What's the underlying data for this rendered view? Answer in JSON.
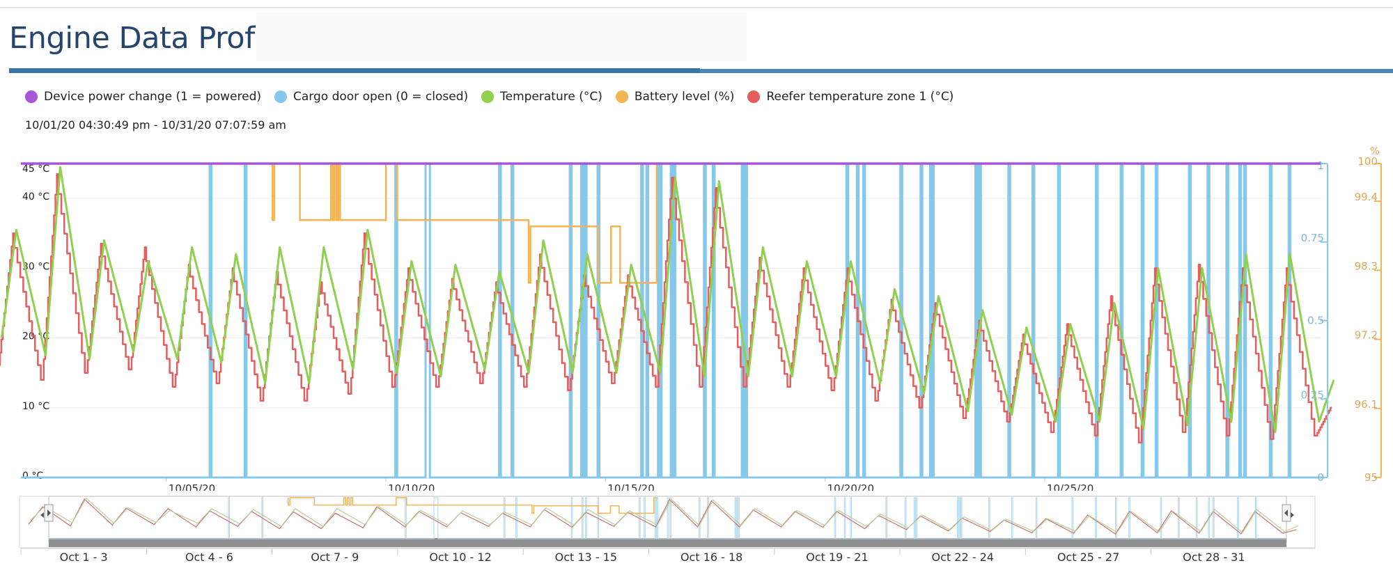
{
  "page": {
    "title": "Engine Data Profile"
  },
  "legend": [
    {
      "label": "Device power change (1 = powered)",
      "color": "#a855d6"
    },
    {
      "label": "Cargo door open (0 = closed)",
      "color": "#86c8ea"
    },
    {
      "label": "Temperature (°C)",
      "color": "#8fd14f"
    },
    {
      "label": "Battery level (%)",
      "color": "#f3b454"
    },
    {
      "label": "Reefer temperature zone 1 (°C)",
      "color": "#e75c5c"
    }
  ],
  "date_range": "10/01/20 04:30:49 pm - 10/31/20 07:07:59 am",
  "chart_data": {
    "type": "line",
    "x_range": [
      "2020-10-01T16:30:49",
      "2020-10-31T07:07:59"
    ],
    "x_ticks": [
      {
        "date": "2020-10-05",
        "label": "10/05/20"
      },
      {
        "date": "2020-10-10",
        "label": "10/10/20"
      },
      {
        "date": "2020-10-15",
        "label": "10/15/20"
      },
      {
        "date": "2020-10-20",
        "label": "10/20/20"
      },
      {
        "date": "2020-10-25",
        "label": "10/25/20"
      }
    ],
    "axes": {
      "temperature": {
        "range": [
          0,
          45
        ],
        "ticks": [
          "0 °C",
          "10 °C",
          "20 °C",
          "30 °C",
          "40 °C",
          "45 °C"
        ],
        "tick_values": [
          0,
          10,
          20,
          30,
          40,
          45
        ]
      },
      "binary": {
        "range": [
          0,
          1
        ],
        "ticks": [
          "0",
          "0.25",
          "0.5",
          "0.75",
          "1"
        ],
        "tick_values": [
          0,
          0.25,
          0.5,
          0.75,
          1
        ]
      },
      "battery": {
        "range": [
          95,
          100
        ],
        "unit": "%",
        "ticks": [
          "95",
          "96.1",
          "97.2",
          "98.3",
          "99.4",
          "100"
        ],
        "tick_values": [
          95,
          96.1,
          97.2,
          98.3,
          99.4,
          100
        ]
      }
    },
    "series": [
      {
        "name": "Device power change (1 = powered)",
        "axis": "binary",
        "points": [
          [
            "2020-10-01T16:30",
            1
          ],
          [
            "2020-10-31T07:07",
            1
          ]
        ]
      },
      {
        "name": "Temperature (°C)",
        "axis": "temperature",
        "daily_peak_time": "14:00",
        "daily_low_time": "06:00",
        "daily": [
          {
            "date": "2020-10-01",
            "peak": 35.5,
            "low": 20
          },
          {
            "date": "2020-10-02",
            "peak": 44.5,
            "low": 17.5
          },
          {
            "date": "2020-10-03",
            "peak": 34,
            "low": 17
          },
          {
            "date": "2020-10-04",
            "peak": 31,
            "low": 18
          },
          {
            "date": "2020-10-05",
            "peak": 33,
            "low": 17
          },
          {
            "date": "2020-10-06",
            "peak": 32,
            "low": 16.5
          },
          {
            "date": "2020-10-07",
            "peak": 33,
            "low": 13.5
          },
          {
            "date": "2020-10-08",
            "peak": 33,
            "low": 13.5
          },
          {
            "date": "2020-10-09",
            "peak": 35.5,
            "low": 15.5
          },
          {
            "date": "2020-10-10",
            "peak": 31,
            "low": 15
          },
          {
            "date": "2020-10-11",
            "peak": 30.5,
            "low": 14.5
          },
          {
            "date": "2020-10-12",
            "peak": 29.5,
            "low": 15.5
          },
          {
            "date": "2020-10-13",
            "peak": 34,
            "low": 15
          },
          {
            "date": "2020-10-14",
            "peak": 32,
            "low": 15
          },
          {
            "date": "2020-10-15",
            "peak": 30.5,
            "low": 15
          },
          {
            "date": "2020-10-16",
            "peak": 43,
            "low": 15
          },
          {
            "date": "2020-10-17",
            "peak": 42.5,
            "low": 14.5
          },
          {
            "date": "2020-10-18",
            "peak": 33,
            "low": 14.5
          },
          {
            "date": "2020-10-19",
            "peak": 31,
            "low": 14.5
          },
          {
            "date": "2020-10-20",
            "peak": 31,
            "low": 14.5
          },
          {
            "date": "2020-10-21",
            "peak": 27,
            "low": 13.5
          },
          {
            "date": "2020-10-22",
            "peak": 26,
            "low": 12
          },
          {
            "date": "2020-10-23",
            "peak": 24,
            "low": 9.5
          },
          {
            "date": "2020-10-24",
            "peak": 21.5,
            "low": 9
          },
          {
            "date": "2020-10-25",
            "peak": 22,
            "low": 8
          },
          {
            "date": "2020-10-26",
            "peak": 25,
            "low": 8
          },
          {
            "date": "2020-10-27",
            "peak": 30,
            "low": 7
          },
          {
            "date": "2020-10-28",
            "peak": 30,
            "low": 7.5
          },
          {
            "date": "2020-10-29",
            "peak": 32,
            "low": 8
          },
          {
            "date": "2020-10-30",
            "peak": 32,
            "low": 6.5
          },
          {
            "date": "2020-10-31",
            "peak": 14,
            "low": 8
          }
        ]
      },
      {
        "name": "Reefer temperature zone 1 (°C)",
        "axis": "temperature",
        "daily_peak_time": "13:00",
        "daily_low_time": "05:00",
        "daily": [
          {
            "date": "2020-10-01",
            "peak": 35,
            "low": 16
          },
          {
            "date": "2020-10-02",
            "peak": 43.5,
            "low": 14
          },
          {
            "date": "2020-10-03",
            "peak": 33.5,
            "low": 15
          },
          {
            "date": "2020-10-04",
            "peak": 33,
            "low": 15.5
          },
          {
            "date": "2020-10-05",
            "peak": 30.5,
            "low": 13
          },
          {
            "date": "2020-10-06",
            "peak": 30,
            "low": 13.5
          },
          {
            "date": "2020-10-07",
            "peak": 29.5,
            "low": 11
          },
          {
            "date": "2020-10-08",
            "peak": 28,
            "low": 11
          },
          {
            "date": "2020-10-09",
            "peak": 35,
            "low": 12
          },
          {
            "date": "2020-10-10",
            "peak": 30,
            "low": 13
          },
          {
            "date": "2020-10-11",
            "peak": 28.5,
            "low": 13
          },
          {
            "date": "2020-10-12",
            "peak": 28,
            "low": 13.5
          },
          {
            "date": "2020-10-13",
            "peak": 32,
            "low": 13
          },
          {
            "date": "2020-10-14",
            "peak": 29,
            "low": 12.5
          },
          {
            "date": "2020-10-15",
            "peak": 29,
            "low": 13.5
          },
          {
            "date": "2020-10-16",
            "peak": 43,
            "low": 13
          },
          {
            "date": "2020-10-17",
            "peak": 41.5,
            "low": 13
          },
          {
            "date": "2020-10-18",
            "peak": 31.5,
            "low": 13
          },
          {
            "date": "2020-10-19",
            "peak": 30,
            "low": 13
          },
          {
            "date": "2020-10-20",
            "peak": 30,
            "low": 12.5
          },
          {
            "date": "2020-10-21",
            "peak": 25.5,
            "low": 11
          },
          {
            "date": "2020-10-22",
            "peak": 25,
            "low": 10
          },
          {
            "date": "2020-10-23",
            "peak": 22.5,
            "low": 8.5
          },
          {
            "date": "2020-10-24",
            "peak": 20.5,
            "low": 8
          },
          {
            "date": "2020-10-25",
            "peak": 22,
            "low": 6.5
          },
          {
            "date": "2020-10-26",
            "peak": 26,
            "low": 6
          },
          {
            "date": "2020-10-27",
            "peak": 30,
            "low": 5
          },
          {
            "date": "2020-10-28",
            "peak": 30.5,
            "low": 6.5
          },
          {
            "date": "2020-10-29",
            "peak": 30,
            "low": 6
          },
          {
            "date": "2020-10-30",
            "peak": 30,
            "low": 5.5
          },
          {
            "date": "2020-10-31",
            "peak": 10,
            "low": 6
          }
        ]
      },
      {
        "name": "Battery level (%)",
        "axis": "battery",
        "points": [
          [
            "2020-10-07T10:00",
            100
          ],
          [
            "2020-10-07T10:00",
            99.1
          ],
          [
            "2020-10-07T11:00",
            99.1
          ],
          [
            "2020-10-07T11:00",
            100
          ],
          [
            "2020-10-07T17:00",
            100
          ],
          [
            "2020-10-08T01:00",
            99.1
          ],
          [
            "2020-10-08T18:00",
            99.1
          ],
          [
            "2020-10-08T18:00",
            100
          ],
          [
            "2020-10-08T19:00",
            99.1
          ],
          [
            "2020-10-08T20:00",
            100
          ],
          [
            "2020-10-08T21:00",
            99.1
          ],
          [
            "2020-10-08T22:00",
            100
          ],
          [
            "2020-10-08T23:00",
            99.1
          ],
          [
            "2020-10-09T18:00",
            99.1
          ],
          [
            "2020-10-10T00:00",
            100
          ],
          [
            "2020-10-10T06:00",
            99.1
          ],
          [
            "2020-10-13T01:00",
            99.1
          ],
          [
            "2020-10-13T06:00",
            98.1
          ],
          [
            "2020-10-13T07:00",
            99.0
          ],
          [
            "2020-10-14T13:00",
            99.0
          ],
          [
            "2020-10-14T20:00",
            98.1
          ],
          [
            "2020-10-15T03:00",
            99.0
          ],
          [
            "2020-10-15T08:00",
            98.1
          ],
          [
            "2020-10-16T04:00",
            98.1
          ],
          [
            "2020-10-16T04:00",
            100
          ],
          [
            "2020-10-16T06:00",
            100
          ]
        ]
      },
      {
        "name": "Cargo door open (0 = closed)",
        "axis": "binary",
        "open_intervals": [
          [
            "2020-10-05T23:40",
            "2020-10-06T00:00"
          ],
          [
            "2020-10-06T18:50",
            "2020-10-06T19:10"
          ],
          [
            "2020-10-10T05:10",
            "2020-10-10T05:30"
          ],
          [
            "2020-10-10T21:40",
            "2020-10-11T00:00"
          ],
          [
            "2020-10-12T13:50",
            "2020-10-12T14:10"
          ],
          [
            "2020-10-12T20:40",
            "2020-10-12T21:00"
          ],
          [
            "2020-10-14T04:30",
            "2020-10-14T04:50"
          ],
          [
            "2020-10-14T10:40",
            "2020-10-14T10:55"
          ],
          [
            "2020-10-14T12:40",
            "2020-10-14T12:55"
          ],
          [
            "2020-10-14T19:40",
            "2020-10-14T19:55"
          ],
          [
            "2020-10-15T19:30",
            "2020-10-15T19:45"
          ],
          [
            "2020-10-15T22:20",
            "2020-10-15T22:40"
          ],
          [
            "2020-10-16T04:40",
            "2020-10-16T05:00"
          ],
          [
            "2020-10-16T05:40",
            "2020-10-16T05:55"
          ],
          [
            "2020-10-16T11:40",
            "2020-10-16T11:55"
          ],
          [
            "2020-10-16T13:10",
            "2020-10-16T13:25"
          ],
          [
            "2020-10-17T05:50",
            "2020-10-17T06:10"
          ],
          [
            "2020-10-17T10:40",
            "2020-10-17T10:55"
          ],
          [
            "2020-10-18T02:30",
            "2020-10-18T02:45"
          ],
          [
            "2020-10-18T03:20",
            "2020-10-18T03:35"
          ],
          [
            "2020-10-18T04:20",
            "2020-10-18T04:35"
          ],
          [
            "2020-10-20T11:40",
            "2020-10-20T11:55"
          ],
          [
            "2020-10-20T17:20",
            "2020-10-20T17:40"
          ],
          [
            "2020-10-20T20:50",
            "2020-10-20T21:10"
          ],
          [
            "2020-10-21T17:10",
            "2020-10-21T17:30"
          ],
          [
            "2020-10-22T04:10",
            "2020-10-22T04:30"
          ],
          [
            "2020-10-22T09:20",
            "2020-10-22T09:40"
          ],
          [
            "2020-10-22T10:20",
            "2020-10-22T10:40"
          ],
          [
            "2020-10-23T10:10",
            "2020-10-23T10:25"
          ],
          [
            "2020-10-23T11:10",
            "2020-10-23T11:25"
          ],
          [
            "2020-10-23T12:10",
            "2020-10-23T12:25"
          ],
          [
            "2020-10-24T04:10",
            "2020-10-24T04:25"
          ],
          [
            "2020-10-24T17:20",
            "2020-10-24T17:40"
          ],
          [
            "2020-10-25T07:20",
            "2020-10-25T07:40"
          ],
          [
            "2020-10-26T04:00",
            "2020-10-26T04:20"
          ],
          [
            "2020-10-26T17:30",
            "2020-10-26T17:45"
          ],
          [
            "2020-10-27T05:00",
            "2020-10-27T05:20"
          ],
          [
            "2020-10-27T12:40",
            "2020-10-27T12:55"
          ],
          [
            "2020-10-28T06:50",
            "2020-10-28T07:10"
          ],
          [
            "2020-10-28T17:00",
            "2020-10-28T17:15"
          ],
          [
            "2020-10-29T03:20",
            "2020-10-29T03:40"
          ],
          [
            "2020-10-29T10:20",
            "2020-10-29T10:40"
          ],
          [
            "2020-10-29T13:00",
            "2020-10-29T13:20"
          ],
          [
            "2020-10-30T03:00",
            "2020-10-30T03:20"
          ],
          [
            "2020-10-30T13:20",
            "2020-10-30T13:40"
          ]
        ]
      }
    ],
    "navigator": {
      "labels": [
        "Oct 1 - 3",
        "Oct 4 - 6",
        "Oct 7 - 9",
        "Oct 10 - 12",
        "Oct 13 - 15",
        "Oct 16 - 18",
        "Oct 19 - 21",
        "Oct 22 - 24",
        "Oct 25 - 27",
        "Oct 28 - 31"
      ]
    },
    "grid": true,
    "legend_position": "top-left"
  }
}
